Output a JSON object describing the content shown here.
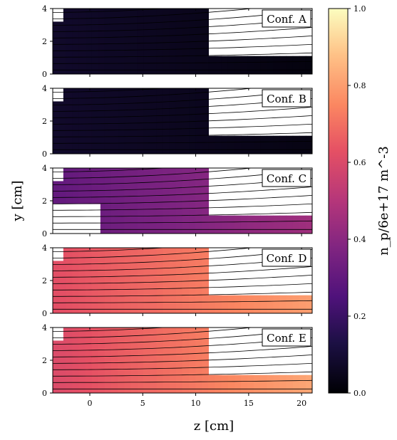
{
  "chart_data": {
    "type": "heatmap",
    "xlabel": "z [cm]",
    "ylabel": "y [cm]",
    "xlim": [
      -3.5,
      21
    ],
    "ylim": [
      0,
      4
    ],
    "xticks": [
      0,
      5,
      10,
      15,
      20
    ],
    "yticks": [
      0,
      2,
      4
    ],
    "colorbar": {
      "label": "n_p/6e+17 m^-3",
      "range": [
        0.0,
        1.0
      ],
      "ticks": [
        "0.0",
        "0.2",
        "0.4",
        "0.6",
        "0.8",
        "1.0"
      ],
      "colormap": "magma"
    },
    "panels": [
      {
        "label": "Conf. A",
        "left_density": 0.08,
        "right_density": 0.02,
        "notch_z": null,
        "notch_y": null
      },
      {
        "label": "Conf. B",
        "left_density": 0.08,
        "right_density": 0.03,
        "notch_z": null,
        "notch_y": null
      },
      {
        "label": "Conf. C",
        "left_density": 0.3,
        "right_density": 0.45,
        "notch_z": 1.0,
        "notch_y": 1.8
      },
      {
        "label": "Conf. D",
        "left_density": 0.62,
        "right_density": 0.8,
        "notch_z": null,
        "notch_y": null
      },
      {
        "label": "Conf. E",
        "left_density": 0.6,
        "right_density": 0.82,
        "notch_z": null,
        "notch_y": null
      }
    ],
    "geometry": {
      "step_z": 11.5,
      "step_y": 1.1,
      "corner_notch_z": -2.5,
      "corner_notch_y": 3.2
    }
  }
}
